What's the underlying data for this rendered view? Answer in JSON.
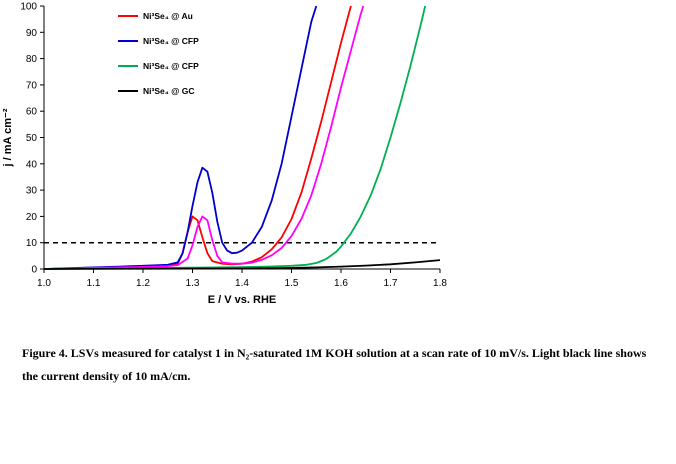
{
  "chart_data": {
    "type": "line",
    "xlabel": "E / V vs. RHE",
    "ylabel": "j / mA cm⁻²",
    "xlim": [
      1.0,
      1.8
    ],
    "ylim": [
      0,
      100
    ],
    "xticks": [
      "1.0",
      "1.1",
      "1.2",
      "1.3",
      "1.4",
      "1.5",
      "1.6",
      "1.7",
      "1.8"
    ],
    "yticks": [
      "0",
      "10",
      "20",
      "30",
      "40",
      "50",
      "60",
      "70",
      "80",
      "90",
      "100"
    ],
    "grid": false,
    "legend_position": "top-left",
    "reference_line": {
      "y": 10,
      "style": "dashed",
      "color": "#000000"
    },
    "series": [
      {
        "name": "Ni³Se₄ @ Au",
        "color": "#ff0000",
        "points": [
          [
            1.0,
            0
          ],
          [
            1.05,
            0.2
          ],
          [
            1.1,
            0.4
          ],
          [
            1.15,
            0.6
          ],
          [
            1.2,
            0.9
          ],
          [
            1.25,
            1.3
          ],
          [
            1.27,
            2
          ],
          [
            1.28,
            6
          ],
          [
            1.29,
            14
          ],
          [
            1.3,
            20
          ],
          [
            1.31,
            18.5
          ],
          [
            1.32,
            12
          ],
          [
            1.33,
            6
          ],
          [
            1.34,
            3
          ],
          [
            1.36,
            2
          ],
          [
            1.38,
            1.8
          ],
          [
            1.4,
            2
          ],
          [
            1.42,
            2.8
          ],
          [
            1.44,
            4.5
          ],
          [
            1.46,
            7.5
          ],
          [
            1.48,
            12
          ],
          [
            1.5,
            19
          ],
          [
            1.52,
            29
          ],
          [
            1.54,
            42
          ],
          [
            1.56,
            56
          ],
          [
            1.58,
            71
          ],
          [
            1.6,
            86
          ],
          [
            1.62,
            100
          ]
        ]
      },
      {
        "name": "Ni³Se₄ @ CFP",
        "color": "#0000cc",
        "points": [
          [
            1.0,
            0
          ],
          [
            1.05,
            0.3
          ],
          [
            1.1,
            0.6
          ],
          [
            1.15,
            0.9
          ],
          [
            1.2,
            1.2
          ],
          [
            1.25,
            1.6
          ],
          [
            1.27,
            2.5
          ],
          [
            1.28,
            6
          ],
          [
            1.29,
            14
          ],
          [
            1.3,
            24
          ],
          [
            1.31,
            33
          ],
          [
            1.32,
            38.5
          ],
          [
            1.33,
            37
          ],
          [
            1.34,
            29
          ],
          [
            1.35,
            18
          ],
          [
            1.36,
            10
          ],
          [
            1.37,
            7
          ],
          [
            1.38,
            6
          ],
          [
            1.39,
            6.2
          ],
          [
            1.4,
            7
          ],
          [
            1.42,
            10
          ],
          [
            1.44,
            16
          ],
          [
            1.46,
            26
          ],
          [
            1.48,
            40
          ],
          [
            1.5,
            58
          ],
          [
            1.52,
            76
          ],
          [
            1.54,
            94
          ],
          [
            1.55,
            100
          ]
        ]
      },
      {
        "name": "Ni³Se₄ @ CFP",
        "color": "#ff00ff",
        "points": [
          [
            1.0,
            0
          ],
          [
            1.05,
            0.2
          ],
          [
            1.1,
            0.4
          ],
          [
            1.15,
            0.6
          ],
          [
            1.2,
            0.8
          ],
          [
            1.25,
            1.1
          ],
          [
            1.27,
            1.5
          ],
          [
            1.29,
            4
          ],
          [
            1.3,
            9
          ],
          [
            1.31,
            16
          ],
          [
            1.32,
            20
          ],
          [
            1.33,
            18.5
          ],
          [
            1.34,
            11
          ],
          [
            1.35,
            5
          ],
          [
            1.36,
            2.5
          ],
          [
            1.38,
            2
          ],
          [
            1.4,
            2
          ],
          [
            1.42,
            2.4
          ],
          [
            1.44,
            3.5
          ],
          [
            1.46,
            5.2
          ],
          [
            1.48,
            8
          ],
          [
            1.5,
            12.5
          ],
          [
            1.52,
            19
          ],
          [
            1.54,
            28
          ],
          [
            1.56,
            40
          ],
          [
            1.58,
            54
          ],
          [
            1.6,
            69
          ],
          [
            1.62,
            83
          ],
          [
            1.64,
            97
          ],
          [
            1.645,
            100
          ]
        ]
      },
      {
        "name": "Ni³Se₄ @ CFP",
        "color": "#00b050",
        "points": [
          [
            1.0,
            0
          ],
          [
            1.1,
            0.2
          ],
          [
            1.2,
            0.3
          ],
          [
            1.3,
            0.5
          ],
          [
            1.4,
            0.7
          ],
          [
            1.45,
            0.9
          ],
          [
            1.5,
            1.2
          ],
          [
            1.53,
            1.6
          ],
          [
            1.55,
            2.3
          ],
          [
            1.57,
            3.8
          ],
          [
            1.59,
            6.5
          ],
          [
            1.6,
            8.5
          ],
          [
            1.62,
            13.5
          ],
          [
            1.64,
            20
          ],
          [
            1.66,
            28
          ],
          [
            1.68,
            38
          ],
          [
            1.7,
            50
          ],
          [
            1.72,
            63
          ],
          [
            1.74,
            77
          ],
          [
            1.76,
            92
          ],
          [
            1.77,
            100
          ]
        ]
      },
      {
        "name": "Ni³Se₄ @ GC",
        "color": "#000000",
        "points": [
          [
            1.0,
            0
          ],
          [
            1.2,
            0.1
          ],
          [
            1.4,
            0.2
          ],
          [
            1.5,
            0.4
          ],
          [
            1.55,
            0.6
          ],
          [
            1.6,
            0.9
          ],
          [
            1.65,
            1.3
          ],
          [
            1.7,
            1.8
          ],
          [
            1.75,
            2.5
          ],
          [
            1.8,
            3.4
          ]
        ]
      }
    ],
    "legend_entries": [
      {
        "label": "Ni³Se₄ @ Au",
        "color": "#ff0000"
      },
      {
        "label": "Ni³Se₄ @ CFP",
        "color": "#0000cc"
      },
      {
        "label": "Ni³Se₄ @ CFP",
        "color": "#00b050"
      },
      {
        "label": "Ni³Se₄ @ GC",
        "color": "#000000"
      }
    ]
  },
  "caption": {
    "bold_lead": "Figure 4.",
    "text": " LSVs measured for catalyst 1 in N₂-saturated 1M KOH solution  at a scan rate of 10 mV/s. Light black line  shows the current density of 10 mA/cm."
  }
}
